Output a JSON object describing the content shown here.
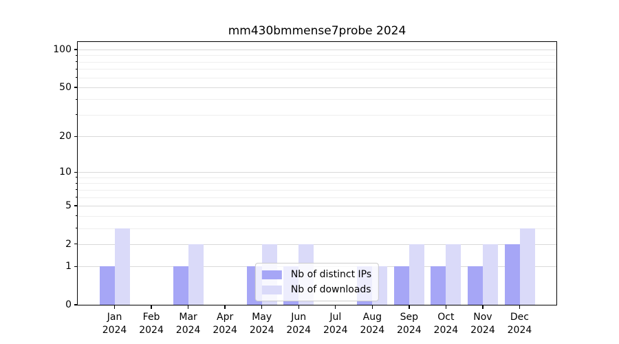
{
  "title": "mm430bmmense7probe 2024",
  "chart_data": {
    "type": "bar",
    "title": "mm430bmmense7probe 2024",
    "x_year_label": "2024",
    "categories": [
      "Jan",
      "Feb",
      "Mar",
      "Apr",
      "May",
      "Jun",
      "Jul",
      "Aug",
      "Sep",
      "Oct",
      "Nov",
      "Dec"
    ],
    "series": [
      {
        "name": "Nb of distinct IPs",
        "color": "#a6a6f6",
        "values": [
          1,
          0,
          1,
          0,
          1,
          1,
          0,
          1,
          1,
          1,
          1,
          2
        ]
      },
      {
        "name": "Nb of downloads",
        "color": "#dadaf9",
        "values": [
          3,
          0,
          2,
          0,
          2,
          2,
          0,
          1,
          2,
          2,
          2,
          3
        ]
      }
    ],
    "y_scale": "log1p",
    "ylim": [
      0,
      114.7
    ],
    "y_ticks": [
      0,
      1,
      2,
      5,
      10,
      20,
      50,
      100
    ],
    "y_minor_ticks": [
      3,
      4,
      6,
      7,
      8,
      9,
      30,
      40,
      60,
      70,
      80,
      90
    ],
    "grid": true,
    "legend_position": "lower center",
    "colors": {
      "major_grid": "#d9d9d9",
      "minor_grid": "#eeeeee",
      "frame": "#000000",
      "background": "#ffffff"
    }
  }
}
